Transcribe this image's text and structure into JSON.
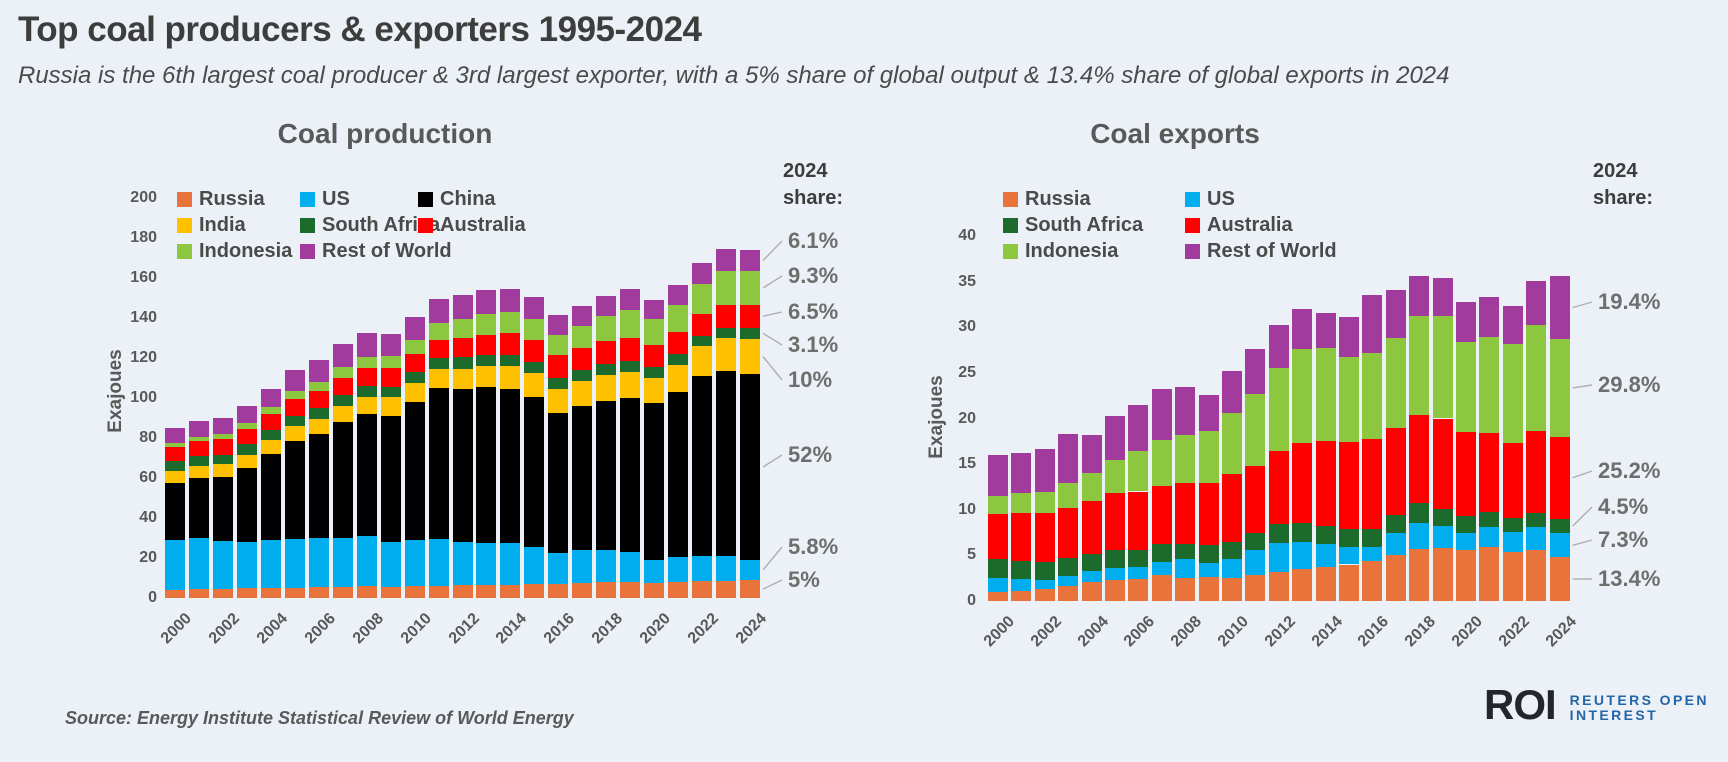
{
  "header": {
    "title": "Top coal producers & exporters 1995-2024",
    "subtitle": "Russia is the 6th largest coal producer & 3rd largest exporter, with a 5% share of global output & 13.4% share of global exports in 2024"
  },
  "footer": {
    "source": "Source: Energy Institute Statistical Review of World Energy",
    "logo": {
      "mark": "ROI",
      "line1": "REUTERS OPEN",
      "line2": "INTEREST"
    }
  },
  "chart_data": [
    {
      "type": "bar",
      "stacked": true,
      "title": "Coal production",
      "ylabel": "Exajoues",
      "ylim": [
        0,
        200
      ],
      "yticks": [
        0,
        20,
        40,
        60,
        80,
        100,
        120,
        140,
        160,
        180,
        200
      ],
      "grid": false,
      "legend_position": "top-left-inside",
      "x": [
        2000,
        2001,
        2002,
        2003,
        2004,
        2005,
        2006,
        2007,
        2008,
        2009,
        2010,
        2011,
        2012,
        2013,
        2014,
        2015,
        2016,
        2017,
        2018,
        2019,
        2020,
        2021,
        2022,
        2023,
        2024
      ],
      "xtick_labels": [
        "2000",
        "2002",
        "2004",
        "2006",
        "2008",
        "2010",
        "2012",
        "2014",
        "2016",
        "2018",
        "2020",
        "2022",
        "2024"
      ],
      "series": [
        {
          "name": "Russia",
          "color": "#E8743B",
          "values": [
            4.2,
            4.5,
            4.4,
            4.9,
            5.0,
            5.2,
            5.4,
            5.6,
            5.9,
            5.5,
            5.8,
            6.1,
            6.4,
            6.4,
            6.5,
            6.8,
            7.1,
            7.6,
            8.0,
            8.2,
            7.7,
            8.2,
            8.4,
            8.7,
            8.9
          ]
        },
        {
          "name": "US",
          "color": "#00AEEF",
          "values": [
            24.6,
            25.3,
            24.0,
            23.0,
            23.8,
            24.2,
            24.6,
            24.4,
            25.0,
            22.5,
            23.1,
            23.3,
            21.6,
            20.9,
            21.2,
            18.8,
            15.3,
            16.4,
            16.0,
            14.9,
            11.3,
            12.3,
            12.5,
            12.1,
            10.3
          ]
        },
        {
          "name": "China",
          "color": "#000000",
          "values": [
            28.5,
            30.0,
            32.0,
            37.0,
            43.0,
            49.0,
            52.0,
            58.0,
            61.0,
            63.0,
            69.0,
            75.5,
            76.5,
            78.0,
            77.0,
            75.0,
            70.0,
            72.0,
            74.5,
            77.0,
            78.5,
            82.5,
            90.0,
            92.5,
            92.6
          ]
        },
        {
          "name": "India",
          "color": "#FFC000",
          "values": [
            6.0,
            6.2,
            6.4,
            6.7,
            7.1,
            7.4,
            7.7,
            8.2,
            8.7,
            9.3,
            9.5,
            9.6,
            10.2,
            10.5,
            11.2,
            11.7,
            12.0,
            12.3,
            13.1,
            12.8,
            12.7,
            13.6,
            15.0,
            16.6,
            17.8
          ]
        },
        {
          "name": "South Africa",
          "color": "#1D6B2C",
          "values": [
            5.0,
            4.9,
            4.9,
            5.2,
            5.3,
            5.3,
            5.3,
            5.4,
            5.5,
            5.4,
            5.5,
            5.5,
            5.6,
            5.6,
            5.7,
            5.6,
            5.5,
            5.5,
            5.5,
            5.5,
            5.3,
            5.4,
            5.0,
            5.2,
            5.5
          ]
        },
        {
          "name": "Australia",
          "color": "#FF0000",
          "values": [
            7.0,
            7.5,
            7.6,
            7.8,
            8.0,
            8.3,
            8.5,
            8.6,
            8.8,
            9.1,
            9.3,
            9.2,
            9.8,
            10.3,
            10.9,
            11.2,
            11.4,
            11.2,
            11.4,
            11.8,
            11.2,
            11.1,
            11.0,
            11.4,
            11.6
          ]
        },
        {
          "name": "Indonesia",
          "color": "#8DC63F",
          "values": [
            2.0,
            2.3,
            2.5,
            2.9,
            3.3,
            3.9,
            4.6,
            5.2,
            5.7,
            6.3,
            7.0,
            8.3,
            9.2,
            10.5,
            10.4,
            10.3,
            10.4,
            10.8,
            12.4,
            13.9,
            12.6,
            13.6,
            15.3,
            16.8,
            16.6
          ]
        },
        {
          "name": "Rest of World",
          "color": "#A23B9E",
          "values": [
            7.5,
            8.0,
            8.0,
            8.5,
            9.0,
            10.5,
            11.0,
            11.5,
            12.0,
            11.0,
            11.5,
            12.0,
            12.0,
            12.0,
            11.5,
            11.0,
            10.0,
            10.0,
            10.0,
            10.5,
            9.5,
            10.0,
            10.5,
            11.0,
            10.9
          ]
        }
      ],
      "share_2024": {
        "header_line1": "2024",
        "header_line2": "share:",
        "items": [
          {
            "label": "6.1%",
            "series": "Rest of World"
          },
          {
            "label": "9.3%",
            "series": "Indonesia"
          },
          {
            "label": "6.5%",
            "series": "Australia"
          },
          {
            "label": "3.1%",
            "series": "South Africa"
          },
          {
            "label": "10%",
            "series": "India"
          },
          {
            "label": "52%",
            "series": "China"
          },
          {
            "label": "5.8%",
            "series": "US"
          },
          {
            "label": "5%",
            "series": "Russia"
          }
        ]
      }
    },
    {
      "type": "bar",
      "stacked": true,
      "title": "Coal exports",
      "ylabel": "Exajoues",
      "ylim": [
        0,
        40
      ],
      "yticks": [
        0,
        5,
        10,
        15,
        20,
        25,
        30,
        35,
        40
      ],
      "grid": false,
      "legend_position": "top-left-inside",
      "x": [
        2000,
        2001,
        2002,
        2003,
        2004,
        2005,
        2006,
        2007,
        2008,
        2009,
        2010,
        2011,
        2012,
        2013,
        2014,
        2015,
        2016,
        2017,
        2018,
        2019,
        2020,
        2021,
        2022,
        2023,
        2024
      ],
      "xtick_labels": [
        "2000",
        "2002",
        "2004",
        "2006",
        "2008",
        "2010",
        "2012",
        "2014",
        "2016",
        "2018",
        "2020",
        "2022",
        "2024"
      ],
      "series": [
        {
          "name": "Russia",
          "color": "#E8743B",
          "values": [
            1.0,
            1.1,
            1.3,
            1.6,
            2.1,
            2.3,
            2.4,
            2.8,
            2.5,
            2.6,
            2.5,
            2.9,
            3.2,
            3.5,
            3.7,
            4.0,
            4.4,
            5.0,
            5.7,
            5.8,
            5.6,
            5.9,
            5.4,
            5.6,
            4.8
          ]
        },
        {
          "name": "US",
          "color": "#00AEEF",
          "values": [
            1.5,
            1.3,
            1.0,
            1.1,
            1.2,
            1.3,
            1.3,
            1.5,
            2.1,
            1.6,
            2.1,
            2.7,
            3.2,
            3.0,
            2.5,
            1.9,
            1.5,
            2.4,
            2.9,
            2.4,
            1.8,
            2.2,
            2.2,
            2.5,
            2.6
          ]
        },
        {
          "name": "South Africa",
          "color": "#1D6B2C",
          "values": [
            2.1,
            2.0,
            2.0,
            2.0,
            1.9,
            2.0,
            1.9,
            1.9,
            1.7,
            1.9,
            1.9,
            1.9,
            2.0,
            2.0,
            2.0,
            2.0,
            2.0,
            2.0,
            2.1,
            1.9,
            1.9,
            1.6,
            1.5,
            1.5,
            1.6
          ]
        },
        {
          "name": "Australia",
          "color": "#FF0000",
          "values": [
            4.9,
            5.2,
            5.3,
            5.5,
            5.8,
            6.2,
            6.4,
            6.4,
            6.6,
            6.8,
            7.4,
            7.3,
            8.0,
            8.8,
            9.3,
            9.5,
            9.8,
            9.6,
            9.7,
            9.9,
            9.2,
            8.7,
            8.2,
            9.0,
            9.0
          ]
        },
        {
          "name": "Indonesia",
          "color": "#8DC63F",
          "values": [
            2.0,
            2.2,
            2.3,
            2.7,
            3.0,
            3.6,
            4.4,
            5.0,
            5.3,
            5.7,
            6.7,
            7.9,
            9.1,
            10.3,
            10.2,
            9.3,
            9.5,
            9.8,
            10.8,
            11.2,
            9.9,
            10.5,
            10.9,
            11.7,
            10.7
          ]
        },
        {
          "name": "Rest of World",
          "color": "#A23B9E",
          "values": [
            4.5,
            4.4,
            4.8,
            5.4,
            4.2,
            4.9,
            5.1,
            5.6,
            5.2,
            4.0,
            4.6,
            4.9,
            4.8,
            4.4,
            3.9,
            4.4,
            6.3,
            5.3,
            4.4,
            4.2,
            4.4,
            4.4,
            4.1,
            4.8,
            6.9
          ]
        }
      ],
      "share_2024": {
        "header_line1": "2024",
        "header_line2": "share:",
        "items": [
          {
            "label": "19.4%",
            "series": "Rest of World"
          },
          {
            "label": "29.8%",
            "series": "Indonesia"
          },
          {
            "label": "25.2%",
            "series": "Australia"
          },
          {
            "label": "4.5%",
            "series": "South Africa"
          },
          {
            "label": "7.3%",
            "series": "US"
          },
          {
            "label": "13.4%",
            "series": "Russia"
          }
        ]
      }
    }
  ]
}
